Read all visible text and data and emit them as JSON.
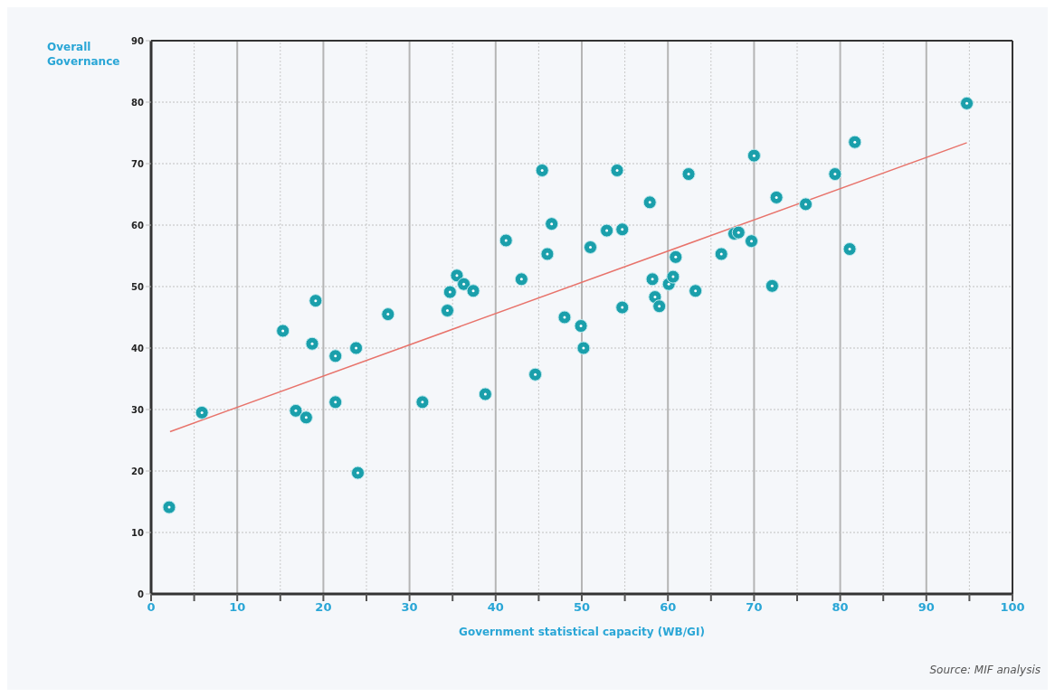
{
  "chart_data": {
    "type": "scatter",
    "xlabel": "Government statistical capacity (WB/GI)",
    "ylabel": "Overall Governance",
    "annotations": [
      "Source: MIF analysis"
    ],
    "xlim": [
      0,
      100
    ],
    "ylim": [
      0,
      90
    ],
    "xticks": [
      0,
      {
        "value": 5,
        "label": null
      },
      10,
      {
        "value": 15,
        "label": null
      },
      20,
      {
        "value": 25,
        "label": null
      },
      30,
      {
        "value": 35,
        "label": null
      },
      40,
      {
        "value": 45,
        "label": null
      },
      50,
      {
        "value": 55,
        "label": null
      },
      60,
      {
        "value": 65,
        "label": null
      },
      70,
      {
        "value": 75,
        "label": null
      },
      80,
      {
        "value": 85,
        "label": null
      },
      90,
      {
        "value": 95,
        "label": null
      },
      100
    ],
    "yticks": [
      0,
      10,
      20,
      30,
      40,
      50,
      60,
      70,
      80,
      90
    ],
    "grid": true,
    "series": [
      {
        "color": "#1a9fab",
        "marker": "circle",
        "x": [
          2.1,
          5.9,
          15.3,
          19.1,
          18.7,
          21.4,
          23.8,
          27.5,
          16.8,
          18.0,
          21.4,
          24.0,
          31.5,
          34.4,
          34.7,
          35.5,
          36.3,
          37.4,
          38.8,
          41.2,
          43.0,
          44.6,
          45.4,
          46.0,
          46.5,
          48.0,
          49.9,
          50.2,
          51.0,
          52.9,
          54.1,
          54.7,
          54.7,
          57.9,
          58.2,
          58.5,
          59.0,
          60.1,
          60.6,
          60.9,
          62.4,
          63.2,
          66.2,
          67.7,
          68.2,
          70.0,
          69.7,
          72.1,
          72.6,
          76.0,
          79.4,
          81.1,
          81.7,
          94.7
        ],
        "values": [
          14.1,
          29.5,
          42.8,
          47.7,
          40.7,
          38.7,
          40.0,
          45.5,
          29.8,
          28.7,
          31.2,
          19.7,
          31.2,
          46.1,
          49.1,
          51.8,
          50.4,
          49.3,
          32.5,
          57.5,
          51.2,
          35.7,
          68.9,
          55.3,
          60.2,
          45.0,
          43.6,
          40.0,
          56.4,
          59.1,
          68.9,
          59.3,
          46.6,
          63.7,
          51.2,
          48.3,
          46.8,
          50.4,
          51.6,
          54.8,
          68.3,
          49.3,
          55.3,
          58.6,
          58.8,
          71.3,
          57.4,
          50.1,
          64.5,
          63.4,
          68.3,
          56.1,
          73.5,
          79.8
        ]
      },
      {
        "type": "line",
        "color": "#e8736b",
        "x": [
          2.2,
          94.7
        ],
        "values": [
          26.4,
          73.4
        ]
      }
    ]
  }
}
